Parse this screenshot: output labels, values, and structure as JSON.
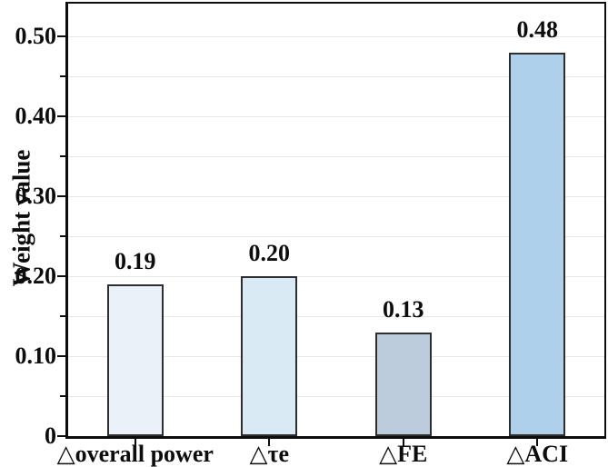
{
  "figure": {
    "background": "#ffffff"
  },
  "chart_data": {
    "type": "bar",
    "title": "",
    "xlabel": "",
    "ylabel": "Weight value",
    "categories": [
      "△overall power",
      "△τe",
      "△FE",
      "△ACI"
    ],
    "values": [
      0.19,
      0.2,
      0.13,
      0.48
    ],
    "bar_value_labels": [
      "0.19",
      "0.20",
      "0.13",
      "0.48"
    ],
    "series": [
      {
        "name": "Weight value",
        "values": [
          0.19,
          0.2,
          0.13,
          0.48
        ]
      }
    ],
    "bar_fill_colors": [
      "#ebf1f8",
      "#d9eaf5",
      "#bcccdd",
      "#afd0ea"
    ],
    "bar_border_color": "#2e2e2e",
    "ylim": [
      0,
      0.541
    ],
    "yticks": [
      {
        "value": 0.0,
        "label": "0"
      },
      {
        "value": 0.1,
        "label": "0.10"
      },
      {
        "value": 0.2,
        "label": "0.20"
      },
      {
        "value": 0.3,
        "label": "0.30"
      },
      {
        "value": 0.4,
        "label": "0.40"
      },
      {
        "value": 0.5,
        "label": "0.50"
      }
    ],
    "minor_yticks": [
      0.05,
      0.15,
      0.25,
      0.35,
      0.45
    ],
    "gridlines": [
      0.05,
      0.1,
      0.15,
      0.2,
      0.25,
      0.3,
      0.35,
      0.4,
      0.45,
      0.5
    ],
    "grid_color": "#e7e7e7",
    "axis_color": "#0d0d0d",
    "legend": "none",
    "grid": "horizontal every 0.05"
  }
}
